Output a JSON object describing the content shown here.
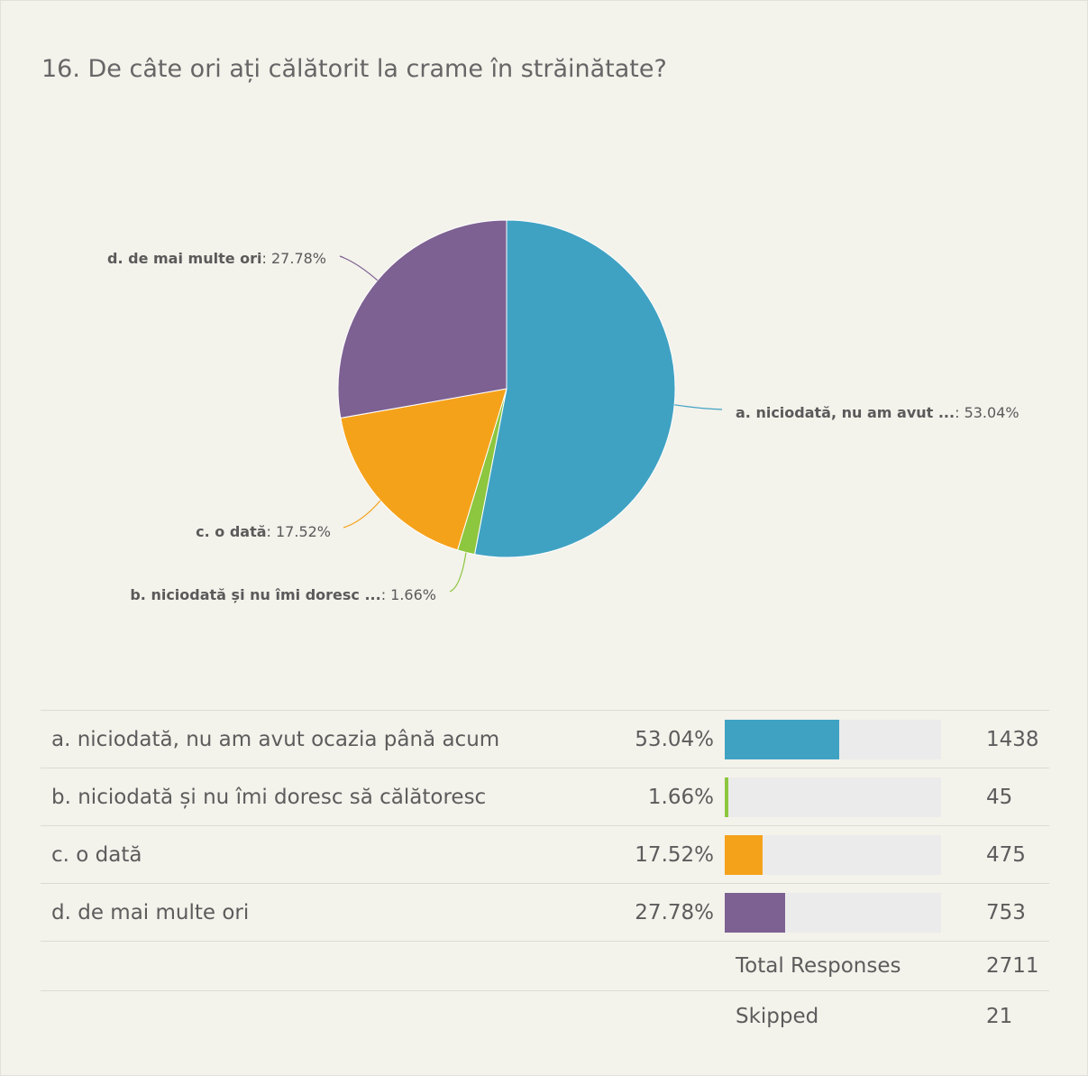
{
  "question": {
    "title": "16. De câte ori ați călătorit la crame în străinătate?"
  },
  "chart_data": {
    "type": "pie",
    "slices": [
      {
        "letter": "a",
        "label": "a. niciodată, nu am avut ...",
        "full_label": "a. niciodată, nu am avut ocazia până acum",
        "percent": 53.04,
        "percent_label": "53.04%",
        "count": 1438,
        "color": "#40a2c3"
      },
      {
        "letter": "b",
        "label": "b. niciodată și nu îmi doresc ...",
        "full_label": "b. niciodată și nu îmi doresc să călătoresc",
        "percent": 1.66,
        "percent_label": "1.66%",
        "count": 45,
        "color": "#8dc63f"
      },
      {
        "letter": "c",
        "label": "c. o dată",
        "full_label": "c. o dată",
        "percent": 17.52,
        "percent_label": "17.52%",
        "count": 475,
        "color": "#f5a21b"
      },
      {
        "letter": "d",
        "label": "d. de mai multe ori",
        "full_label": "d. de mai multe ori",
        "percent": 27.78,
        "percent_label": "27.78%",
        "count": 753,
        "color": "#7d6192"
      }
    ]
  },
  "summary": {
    "total_label": "Total Responses",
    "total_value": "2711",
    "skipped_label": "Skipped",
    "skipped_value": "21"
  }
}
